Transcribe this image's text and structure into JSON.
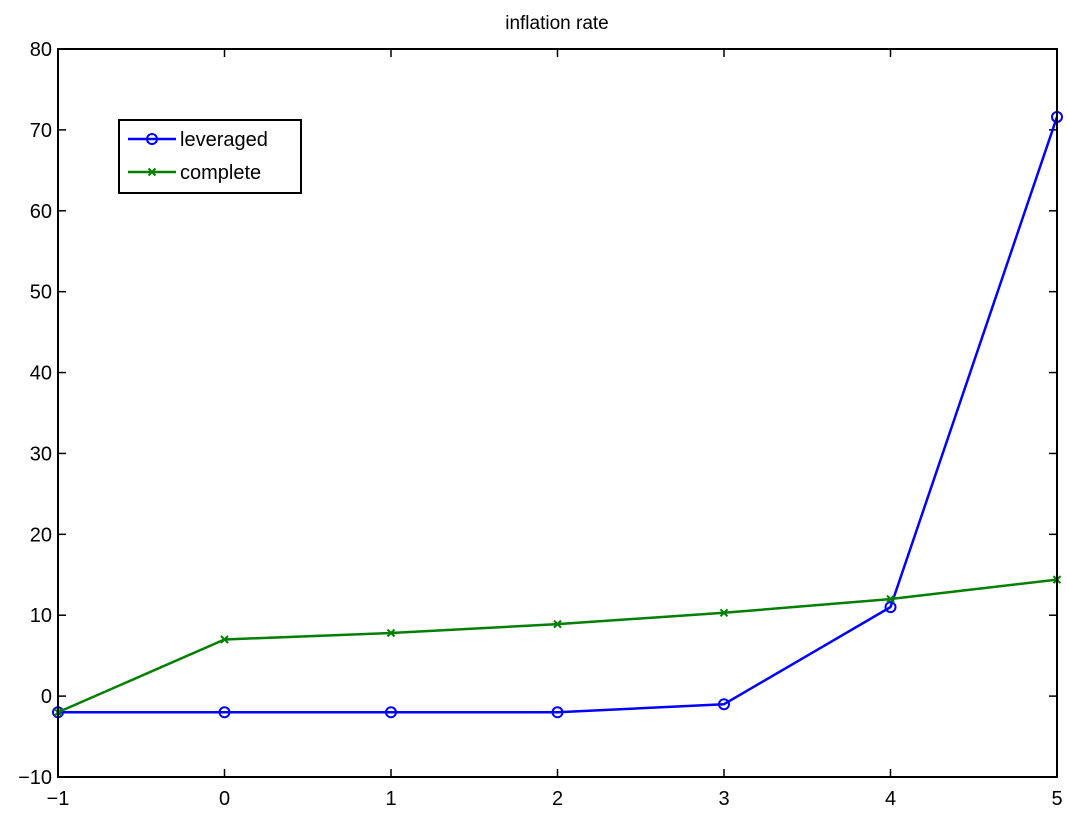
{
  "chart_data": {
    "type": "line",
    "title": "inflation rate",
    "xlabel": "",
    "ylabel": "",
    "xlim": [
      -1,
      5
    ],
    "ylim": [
      -10,
      80
    ],
    "xticks": [
      -1,
      0,
      1,
      2,
      3,
      4,
      5
    ],
    "yticks": [
      -10,
      0,
      10,
      20,
      30,
      40,
      50,
      60,
      70,
      80
    ],
    "xtick_labels": [
      "−1",
      "0",
      "1",
      "2",
      "3",
      "4",
      "5"
    ],
    "ytick_labels": [
      "−10",
      "0",
      "10",
      "20",
      "30",
      "40",
      "50",
      "60",
      "70",
      "80"
    ],
    "grid": false,
    "legend_position": "top-left",
    "x": [
      -1,
      0,
      1,
      2,
      3,
      4,
      5
    ],
    "series": [
      {
        "name": "leveraged",
        "values": [
          -2,
          -2,
          -2,
          -2,
          -1,
          11,
          71.6
        ],
        "color": "#0000ff",
        "marker": "circle"
      },
      {
        "name": "complete",
        "values": [
          -2,
          7,
          7.8,
          8.9,
          10.3,
          12,
          14.4
        ],
        "color": "#007f00",
        "marker": "x"
      }
    ]
  }
}
